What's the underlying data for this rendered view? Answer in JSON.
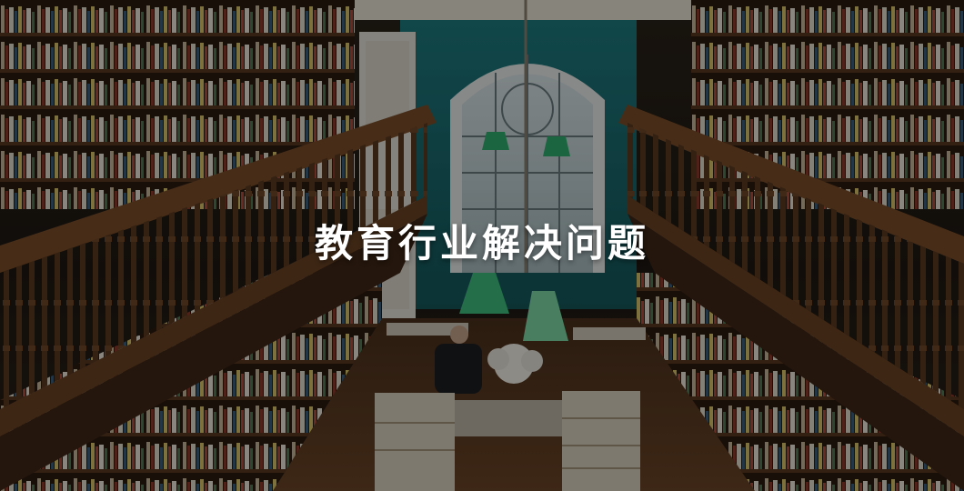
{
  "banner": {
    "headline": "教育行业解决问题"
  },
  "colors": {
    "teal_wall": "#1f6e73",
    "wood": "#6b4424",
    "dark_wood": "#3a2414",
    "floor": "#5a3a22",
    "lamp_green": "#2fae70",
    "text": "#ffffff"
  },
  "icons": {
    "background": "bookshop-photo"
  }
}
